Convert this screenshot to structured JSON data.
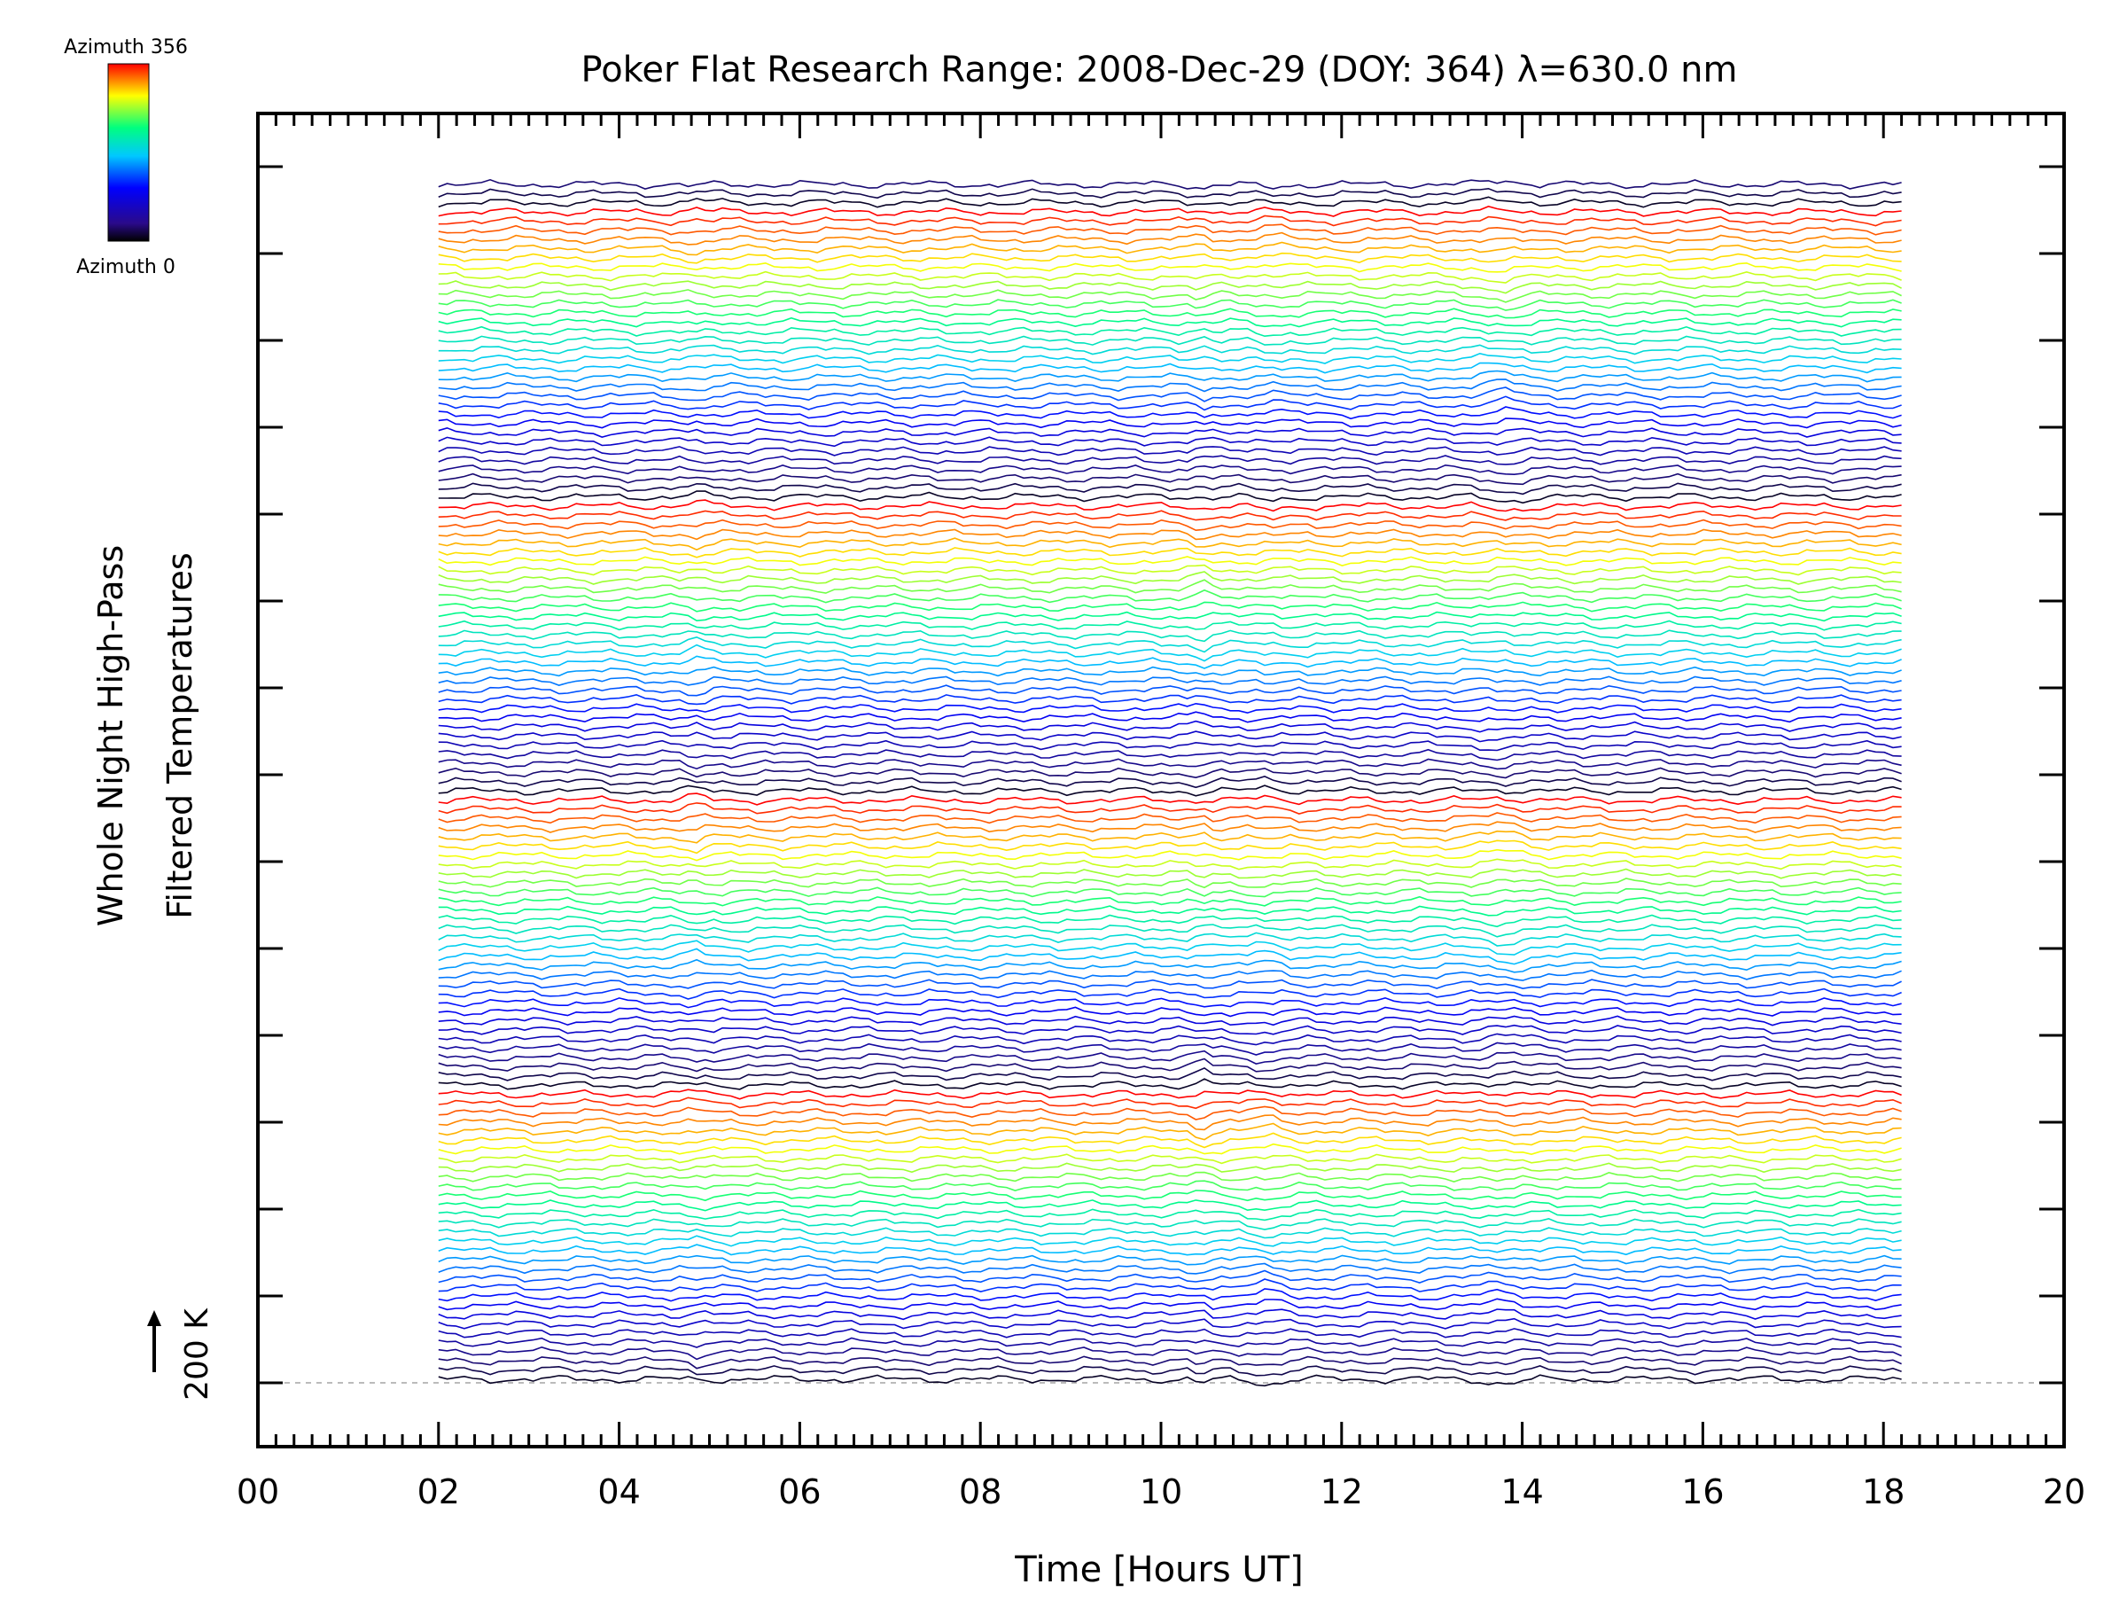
{
  "chart_data": {
    "type": "line",
    "title": "Poker Flat Research Range: 2008-Dec-29 (DOY: 364) λ=630.0 nm",
    "xlabel": "Time [Hours UT]",
    "ylabel_line1": "Whole Night High-Pass",
    "ylabel_line2": "Filtered Temperatures",
    "xlim": [
      0,
      20
    ],
    "x_ticks": [
      "00",
      "02",
      "04",
      "06",
      "08",
      "10",
      "12",
      "14",
      "16",
      "18",
      "20"
    ],
    "data_range": [
      2.0,
      18.2
    ],
    "scale_label": "200 K",
    "colorbar": {
      "top_label": "Azimuth 356",
      "bottom_label": "Azimuth 0"
    },
    "trace_count": 131,
    "traces_per_cycle": 32,
    "baseline_color": "#bbbbbb",
    "colors": [
      "#000000",
      "#1a0a7a",
      "#0000ff",
      "#00c8ff",
      "#00ff7f",
      "#ffff00",
      "#ff0000"
    ]
  }
}
